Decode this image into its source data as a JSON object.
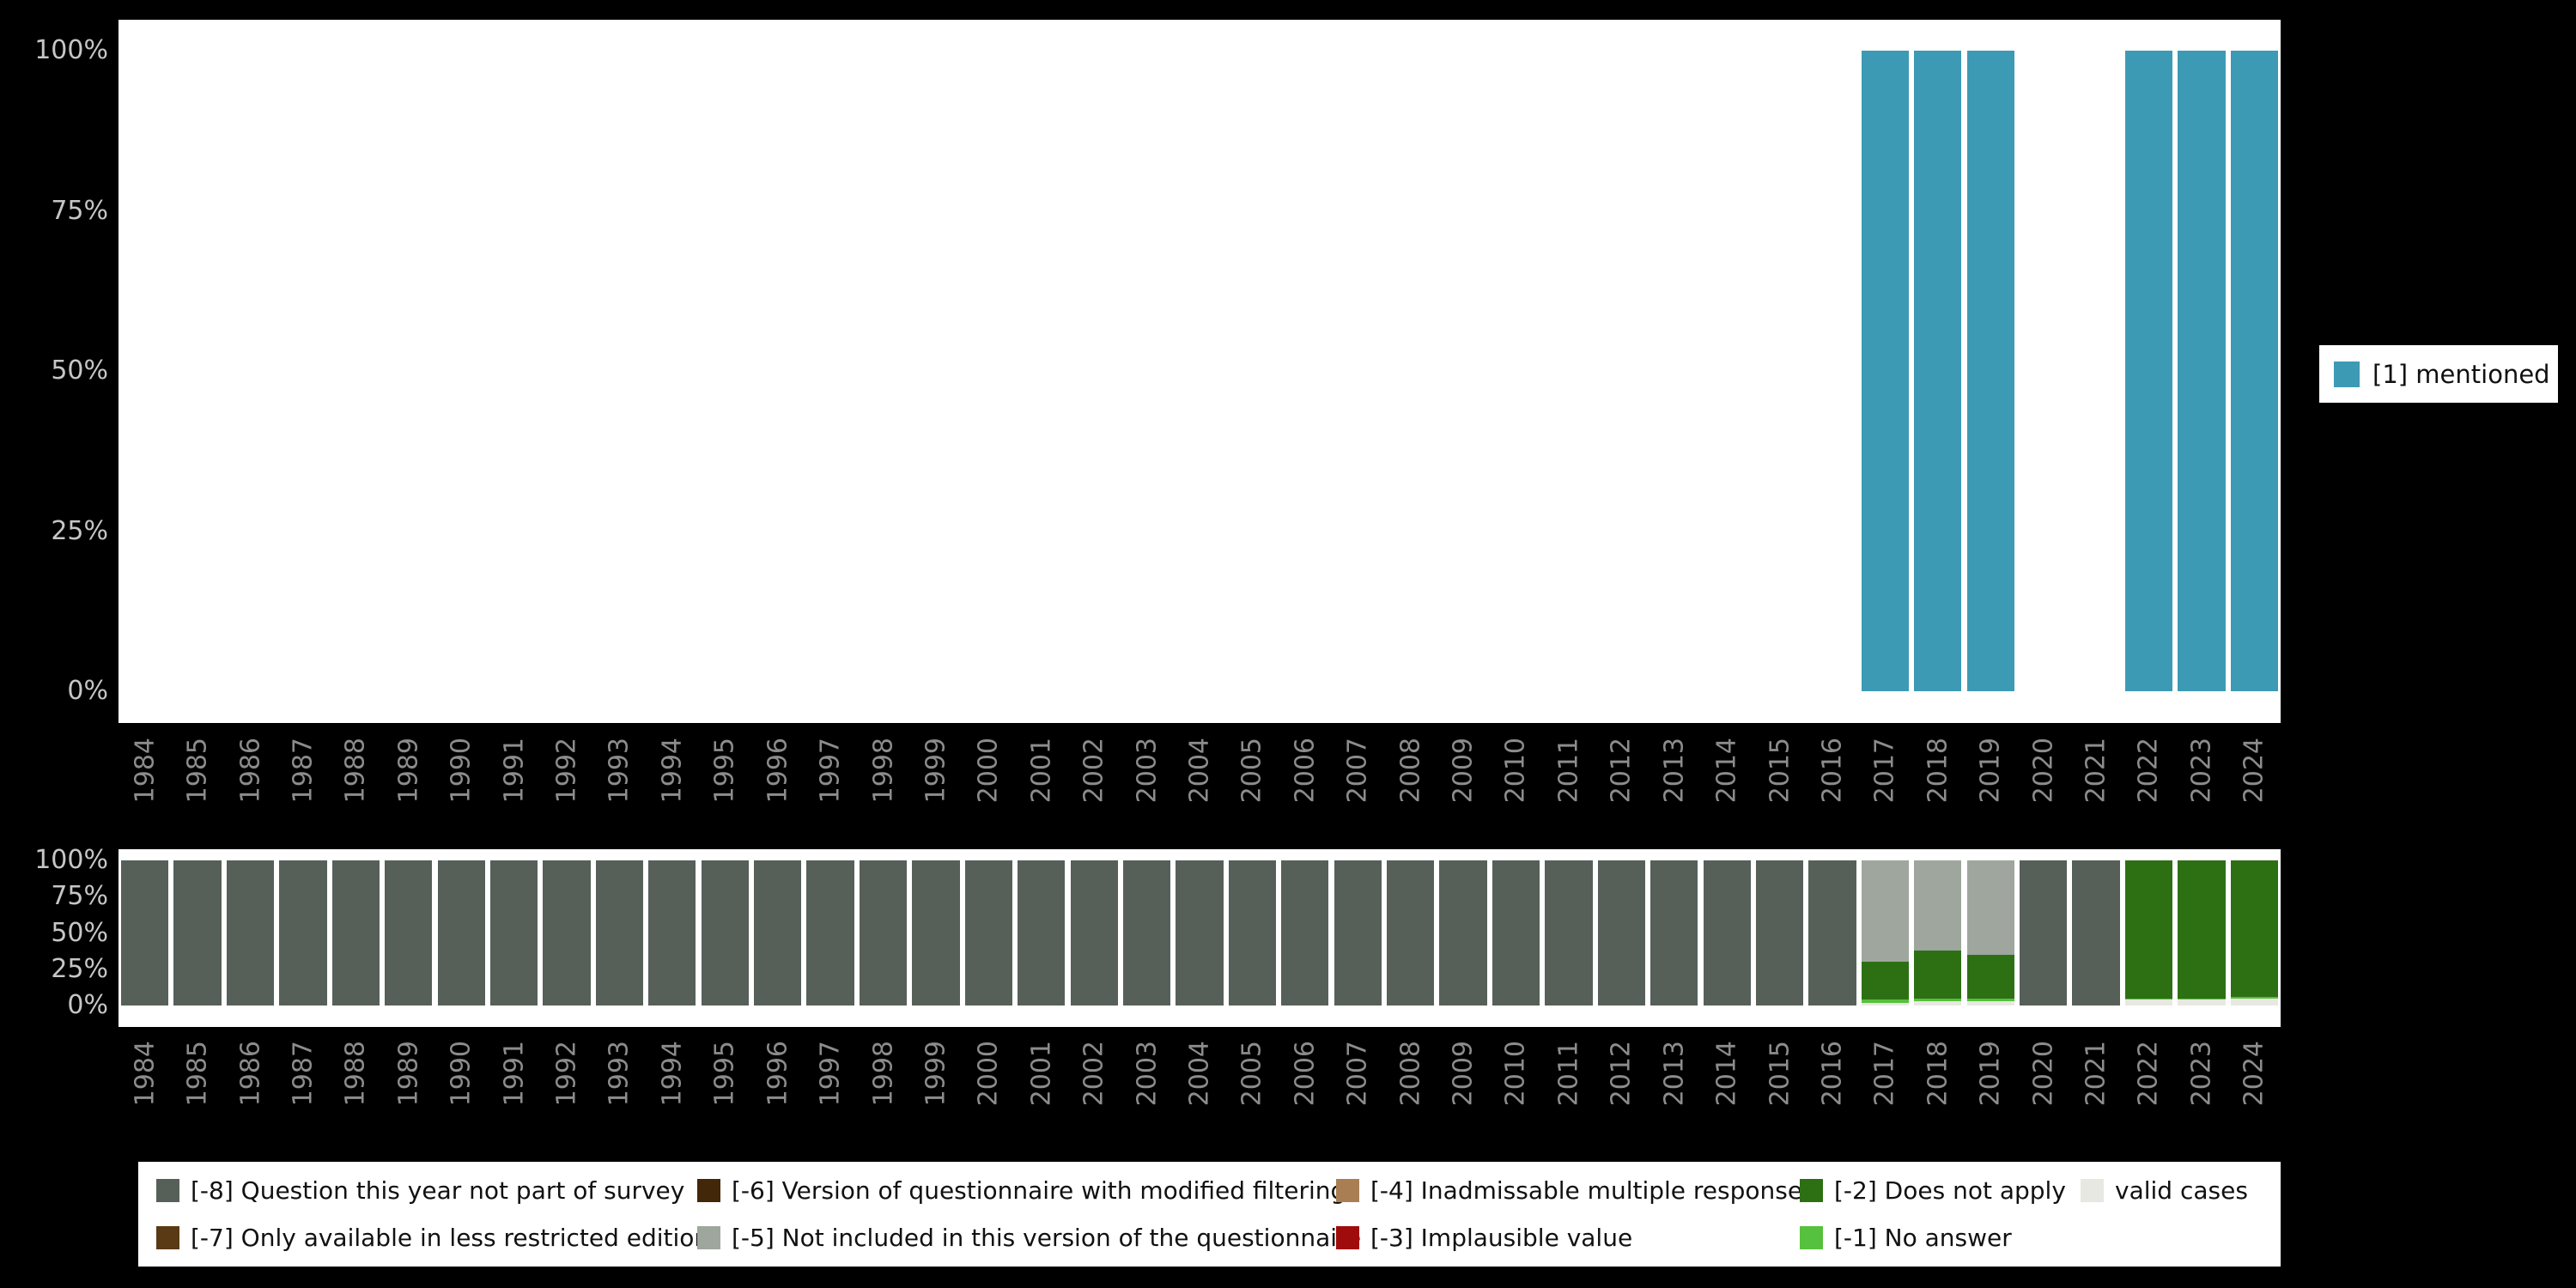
{
  "colors": {
    "background": "#000000",
    "panel": "#ffffff",
    "axis_tick_text": "#c6c6c6",
    "axis_year_text": "#8c8c8c",
    "legend_bg": "#ffffff",
    "legend_text": "#111111"
  },
  "chart_data": [
    {
      "type": "bar",
      "title": "",
      "categories": [
        "1984",
        "1985",
        "1986",
        "1987",
        "1988",
        "1989",
        "1990",
        "1991",
        "1992",
        "1993",
        "1994",
        "1995",
        "1996",
        "1997",
        "1998",
        "1999",
        "2000",
        "2001",
        "2002",
        "2003",
        "2004",
        "2005",
        "2006",
        "2007",
        "2008",
        "2009",
        "2010",
        "2011",
        "2012",
        "2013",
        "2014",
        "2015",
        "2016",
        "2017",
        "2018",
        "2019",
        "2020",
        "2021",
        "2022",
        "2023",
        "2024"
      ],
      "series": [
        {
          "name": "[1] mentioned",
          "color": "#3d9ab4",
          "values": [
            0,
            0,
            0,
            0,
            0,
            0,
            0,
            0,
            0,
            0,
            0,
            0,
            0,
            0,
            0,
            0,
            0,
            0,
            0,
            0,
            0,
            0,
            0,
            0,
            0,
            0,
            0,
            0,
            0,
            0,
            0,
            0,
            0,
            100,
            100,
            100,
            0,
            0,
            100,
            100,
            100
          ]
        }
      ],
      "ylim": [
        0,
        100
      ],
      "ytick_labels": [
        "100%",
        "75%",
        "50%",
        "25%",
        "0%"
      ],
      "unit": "percent",
      "grid": false,
      "legend_position": "right"
    },
    {
      "type": "stacked-bar",
      "title": "",
      "categories": [
        "1984",
        "1985",
        "1986",
        "1987",
        "1988",
        "1989",
        "1990",
        "1991",
        "1992",
        "1993",
        "1994",
        "1995",
        "1996",
        "1997",
        "1998",
        "1999",
        "2000",
        "2001",
        "2002",
        "2003",
        "2004",
        "2005",
        "2006",
        "2007",
        "2008",
        "2009",
        "2010",
        "2011",
        "2012",
        "2013",
        "2014",
        "2015",
        "2016",
        "2017",
        "2018",
        "2019",
        "2020",
        "2021",
        "2022",
        "2023",
        "2024"
      ],
      "stack_order": "bottom_to_top",
      "series": [
        {
          "name": "valid cases",
          "color": "#e8e8e2",
          "values": [
            0,
            0,
            0,
            0,
            0,
            0,
            0,
            0,
            0,
            0,
            0,
            0,
            0,
            0,
            0,
            0,
            0,
            0,
            0,
            0,
            0,
            0,
            0,
            0,
            0,
            0,
            0,
            0,
            0,
            0,
            0,
            0,
            0,
            2,
            3,
            3,
            0,
            0,
            4,
            4,
            5
          ]
        },
        {
          "name": "[-1] No answer",
          "color": "#56c13c",
          "values": [
            0,
            0,
            0,
            0,
            0,
            0,
            0,
            0,
            0,
            0,
            0,
            0,
            0,
            0,
            0,
            0,
            0,
            0,
            0,
            0,
            0,
            0,
            0,
            0,
            0,
            0,
            0,
            0,
            0,
            0,
            0,
            0,
            0,
            2,
            2,
            2,
            0,
            0,
            1,
            1,
            1
          ]
        },
        {
          "name": "[-2] Does not apply",
          "color": "#2d7014",
          "values": [
            0,
            0,
            0,
            0,
            0,
            0,
            0,
            0,
            0,
            0,
            0,
            0,
            0,
            0,
            0,
            0,
            0,
            0,
            0,
            0,
            0,
            0,
            0,
            0,
            0,
            0,
            0,
            0,
            0,
            0,
            0,
            0,
            0,
            26,
            33,
            30,
            0,
            0,
            95,
            95,
            94
          ]
        },
        {
          "name": "[-3] Implausible value",
          "color": "#a00c0c",
          "values": [
            0,
            0,
            0,
            0,
            0,
            0,
            0,
            0,
            0,
            0,
            0,
            0,
            0,
            0,
            0,
            0,
            0,
            0,
            0,
            0,
            0,
            0,
            0,
            0,
            0,
            0,
            0,
            0,
            0,
            0,
            0,
            0,
            0,
            0,
            0,
            0,
            0,
            0,
            0,
            0,
            0
          ]
        },
        {
          "name": "[-4] Inadmissable multiple response",
          "color": "#a97e52",
          "values": [
            0,
            0,
            0,
            0,
            0,
            0,
            0,
            0,
            0,
            0,
            0,
            0,
            0,
            0,
            0,
            0,
            0,
            0,
            0,
            0,
            0,
            0,
            0,
            0,
            0,
            0,
            0,
            0,
            0,
            0,
            0,
            0,
            0,
            0,
            0,
            0,
            0,
            0,
            0,
            0,
            0
          ]
        },
        {
          "name": "[-5] Not included in this version of the questionnaire",
          "color": "#9fa69e",
          "values": [
            0,
            0,
            0,
            0,
            0,
            0,
            0,
            0,
            0,
            0,
            0,
            0,
            0,
            0,
            0,
            0,
            0,
            0,
            0,
            0,
            0,
            0,
            0,
            0,
            0,
            0,
            0,
            0,
            0,
            0,
            0,
            0,
            0,
            70,
            62,
            65,
            0,
            0,
            0,
            0,
            0
          ]
        },
        {
          "name": "[-6] Version of questionnaire with modified filtering",
          "color": "#422708",
          "values": [
            0,
            0,
            0,
            0,
            0,
            0,
            0,
            0,
            0,
            0,
            0,
            0,
            0,
            0,
            0,
            0,
            0,
            0,
            0,
            0,
            0,
            0,
            0,
            0,
            0,
            0,
            0,
            0,
            0,
            0,
            0,
            0,
            0,
            0,
            0,
            0,
            0,
            0,
            0,
            0,
            0
          ]
        },
        {
          "name": "[-7] Only available in less restricted edition",
          "color": "#5a3a14",
          "values": [
            0,
            0,
            0,
            0,
            0,
            0,
            0,
            0,
            0,
            0,
            0,
            0,
            0,
            0,
            0,
            0,
            0,
            0,
            0,
            0,
            0,
            0,
            0,
            0,
            0,
            0,
            0,
            0,
            0,
            0,
            0,
            0,
            0,
            0,
            0,
            0,
            0,
            0,
            0,
            0,
            0
          ]
        },
        {
          "name": "[-8] Question this year not part of survey",
          "color": "#566059",
          "values": [
            100,
            100,
            100,
            100,
            100,
            100,
            100,
            100,
            100,
            100,
            100,
            100,
            100,
            100,
            100,
            100,
            100,
            100,
            100,
            100,
            100,
            100,
            100,
            100,
            100,
            100,
            100,
            100,
            100,
            100,
            100,
            100,
            100,
            0,
            0,
            0,
            100,
            100,
            0,
            0,
            0
          ]
        }
      ],
      "ylim": [
        0,
        100
      ],
      "ytick_labels": [
        "100%",
        "75%",
        "50%",
        "25%",
        "0%"
      ],
      "unit": "percent",
      "grid": false,
      "legend_position": "bottom"
    }
  ],
  "top_legend": {
    "label": "[1] mentioned",
    "color": "#3d9ab4"
  },
  "bottom_legend": {
    "items": [
      {
        "label": "[-8] Question this year not part of survey",
        "color": "#566059",
        "row": 1,
        "col": 1
      },
      {
        "label": "[-7] Only available in less restricted edition",
        "color": "#5a3a14",
        "row": 2,
        "col": 1
      },
      {
        "label": "[-6] Version of questionnaire with modified filtering",
        "color": "#422708",
        "row": 1,
        "col": 2
      },
      {
        "label": "[-5] Not included in this version of the questionnaire",
        "color": "#9fa69e",
        "row": 2,
        "col": 2
      },
      {
        "label": "[-4] Inadmissable multiple response",
        "color": "#a97e52",
        "row": 1,
        "col": 3
      },
      {
        "label": "[-3] Implausible value",
        "color": "#a00c0c",
        "row": 2,
        "col": 3
      },
      {
        "label": "[-2] Does not apply",
        "color": "#2d7014",
        "row": 1,
        "col": 4
      },
      {
        "label": "[-1] No answer",
        "color": "#56c13c",
        "row": 2,
        "col": 4
      },
      {
        "label": "valid cases",
        "color": "#e8e8e2",
        "row": 1,
        "col": 5
      }
    ]
  }
}
